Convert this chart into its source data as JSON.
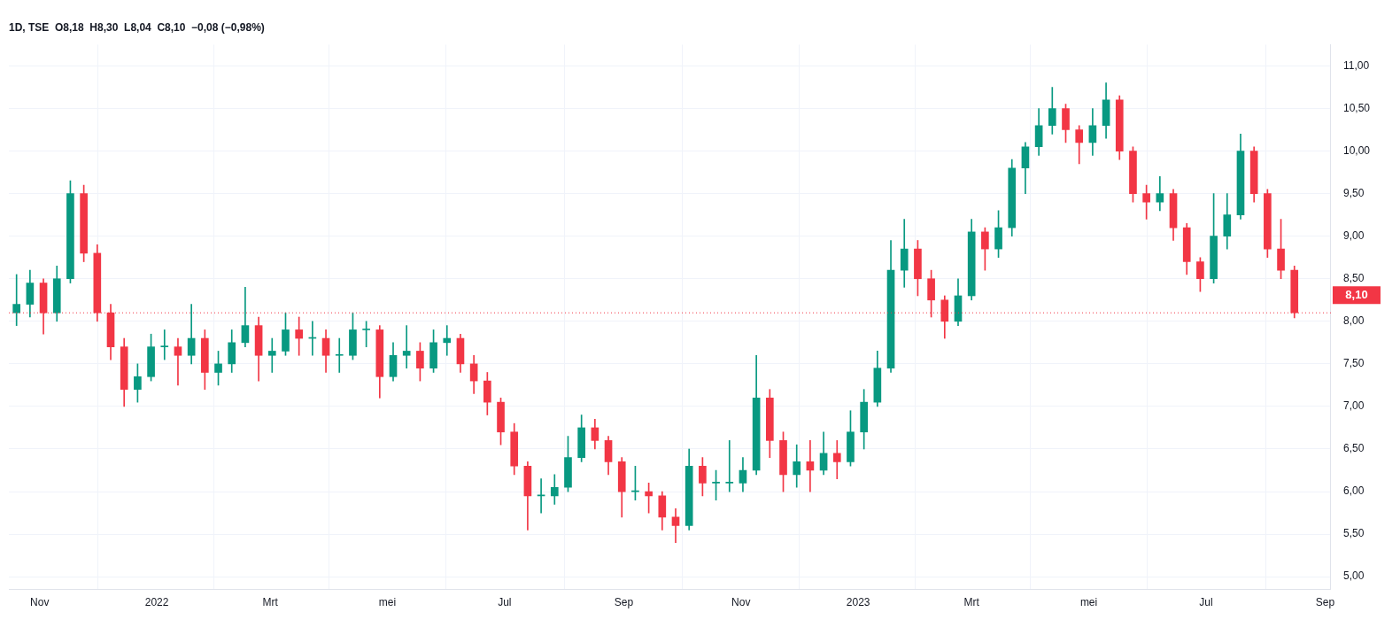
{
  "chart_data": {
    "type": "candlestick",
    "title": "1D, TSE  O8,18  H8,30  L8,04  C8,10  −0,08 (−0,98%)",
    "x": [
      "2021-10-20",
      "2021-10-27",
      "2021-11-03",
      "2021-11-10",
      "2021-11-17",
      "2021-11-24",
      "2021-12-01",
      "2021-12-08",
      "2021-12-15",
      "2021-12-22",
      "2021-12-29",
      "2022-01-05",
      "2022-01-12",
      "2022-01-19",
      "2022-01-26",
      "2022-02-02",
      "2022-02-09",
      "2022-02-16",
      "2022-02-23",
      "2022-03-02",
      "2022-03-09",
      "2022-03-16",
      "2022-03-23",
      "2022-03-30",
      "2022-04-06",
      "2022-04-13",
      "2022-04-20",
      "2022-04-27",
      "2022-05-04",
      "2022-05-11",
      "2022-05-18",
      "2022-05-25",
      "2022-06-01",
      "2022-06-08",
      "2022-06-15",
      "2022-06-22",
      "2022-06-29",
      "2022-07-06",
      "2022-07-13",
      "2022-07-20",
      "2022-07-27",
      "2022-08-03",
      "2022-08-10",
      "2022-08-17",
      "2022-08-24",
      "2022-08-31",
      "2022-09-07",
      "2022-09-14",
      "2022-09-21",
      "2022-09-28",
      "2022-10-05",
      "2022-10-12",
      "2022-10-19",
      "2022-10-26",
      "2022-11-02",
      "2022-11-09",
      "2022-11-16",
      "2022-11-23",
      "2022-11-30",
      "2022-12-07",
      "2022-12-14",
      "2022-12-21",
      "2022-12-28",
      "2023-01-04",
      "2023-01-11",
      "2023-01-18",
      "2023-01-25",
      "2023-02-01",
      "2023-02-08",
      "2023-02-15",
      "2023-02-22",
      "2023-03-01",
      "2023-03-08",
      "2023-03-15",
      "2023-03-22",
      "2023-03-29",
      "2023-04-05",
      "2023-04-12",
      "2023-04-19",
      "2023-04-26",
      "2023-05-03",
      "2023-05-10",
      "2023-05-17",
      "2023-05-24",
      "2023-05-31",
      "2023-06-07",
      "2023-06-14",
      "2023-06-21",
      "2023-06-28",
      "2023-07-05",
      "2023-07-12",
      "2023-07-19",
      "2023-07-26",
      "2023-08-02",
      "2023-08-09",
      "2023-08-16"
    ],
    "ohlc": [
      [
        8.1,
        8.55,
        7.95,
        8.2
      ],
      [
        8.2,
        8.6,
        8.05,
        8.45
      ],
      [
        8.45,
        8.5,
        7.85,
        8.1
      ],
      [
        8.1,
        8.65,
        8.0,
        8.5
      ],
      [
        8.5,
        9.65,
        8.45,
        9.5
      ],
      [
        9.5,
        9.6,
        8.7,
        8.8
      ],
      [
        8.8,
        8.9,
        8.0,
        8.1
      ],
      [
        8.1,
        8.2,
        7.55,
        7.7
      ],
      [
        7.7,
        7.8,
        7.0,
        7.2
      ],
      [
        7.2,
        7.5,
        7.05,
        7.35
      ],
      [
        7.35,
        7.85,
        7.3,
        7.7
      ],
      [
        7.7,
        7.9,
        7.55,
        7.7
      ],
      [
        7.7,
        7.8,
        7.25,
        7.6
      ],
      [
        7.6,
        8.2,
        7.5,
        7.8
      ],
      [
        7.8,
        7.9,
        7.2,
        7.4
      ],
      [
        7.4,
        7.65,
        7.25,
        7.5
      ],
      [
        7.5,
        7.9,
        7.4,
        7.75
      ],
      [
        7.75,
        8.4,
        7.7,
        7.95
      ],
      [
        7.95,
        8.05,
        7.3,
        7.6
      ],
      [
        7.6,
        7.8,
        7.4,
        7.65
      ],
      [
        7.65,
        8.1,
        7.6,
        7.9
      ],
      [
        7.9,
        8.05,
        7.6,
        7.8
      ],
      [
        7.8,
        8.0,
        7.6,
        7.8
      ],
      [
        7.8,
        7.9,
        7.4,
        7.6
      ],
      [
        7.6,
        7.8,
        7.4,
        7.6
      ],
      [
        7.6,
        8.1,
        7.55,
        7.9
      ],
      [
        7.9,
        8.0,
        7.7,
        7.9
      ],
      [
        7.9,
        7.95,
        7.1,
        7.35
      ],
      [
        7.35,
        7.75,
        7.3,
        7.6
      ],
      [
        7.6,
        7.95,
        7.45,
        7.65
      ],
      [
        7.65,
        7.75,
        7.3,
        7.45
      ],
      [
        7.45,
        7.9,
        7.4,
        7.75
      ],
      [
        7.75,
        7.95,
        7.6,
        7.8
      ],
      [
        7.8,
        7.85,
        7.4,
        7.5
      ],
      [
        7.5,
        7.6,
        7.15,
        7.3
      ],
      [
        7.3,
        7.4,
        6.9,
        7.05
      ],
      [
        7.05,
        7.1,
        6.55,
        6.7
      ],
      [
        6.7,
        6.8,
        6.2,
        6.3
      ],
      [
        6.3,
        6.35,
        5.55,
        5.95
      ],
      [
        5.95,
        6.15,
        5.75,
        5.95
      ],
      [
        5.95,
        6.2,
        5.85,
        6.05
      ],
      [
        6.05,
        6.65,
        6.0,
        6.4
      ],
      [
        6.4,
        6.9,
        6.35,
        6.75
      ],
      [
        6.75,
        6.85,
        6.5,
        6.6
      ],
      [
        6.6,
        6.65,
        6.2,
        6.35
      ],
      [
        6.35,
        6.4,
        5.7,
        6.0
      ],
      [
        6.0,
        6.3,
        5.9,
        6.0
      ],
      [
        6.0,
        6.1,
        5.75,
        5.95
      ],
      [
        5.95,
        6.0,
        5.55,
        5.7
      ],
      [
        5.7,
        5.8,
        5.4,
        5.6
      ],
      [
        5.6,
        6.5,
        5.55,
        6.3
      ],
      [
        6.3,
        6.4,
        5.95,
        6.1
      ],
      [
        6.1,
        6.25,
        5.9,
        6.1
      ],
      [
        6.1,
        6.6,
        6.0,
        6.1
      ],
      [
        6.1,
        6.4,
        6.0,
        6.25
      ],
      [
        6.25,
        7.6,
        6.2,
        7.1
      ],
      [
        7.1,
        7.2,
        6.4,
        6.6
      ],
      [
        6.6,
        6.7,
        6.0,
        6.2
      ],
      [
        6.2,
        6.55,
        6.05,
        6.35
      ],
      [
        6.35,
        6.6,
        6.0,
        6.25
      ],
      [
        6.25,
        6.7,
        6.2,
        6.45
      ],
      [
        6.45,
        6.6,
        6.15,
        6.35
      ],
      [
        6.35,
        6.95,
        6.3,
        6.7
      ],
      [
        6.7,
        7.2,
        6.5,
        7.05
      ],
      [
        7.05,
        7.65,
        7.0,
        7.45
      ],
      [
        7.45,
        8.95,
        7.4,
        8.6
      ],
      [
        8.6,
        9.2,
        8.4,
        8.85
      ],
      [
        8.85,
        8.95,
        8.3,
        8.5
      ],
      [
        8.5,
        8.6,
        8.05,
        8.25
      ],
      [
        8.25,
        8.3,
        7.8,
        8.0
      ],
      [
        8.0,
        8.5,
        7.95,
        8.3
      ],
      [
        8.3,
        9.2,
        8.25,
        9.05
      ],
      [
        9.05,
        9.1,
        8.6,
        8.85
      ],
      [
        8.85,
        9.3,
        8.75,
        9.1
      ],
      [
        9.1,
        9.9,
        9.0,
        9.8
      ],
      [
        9.8,
        10.1,
        9.5,
        10.05
      ],
      [
        10.05,
        10.5,
        9.95,
        10.3
      ],
      [
        10.3,
        10.75,
        10.2,
        10.5
      ],
      [
        10.5,
        10.55,
        10.1,
        10.25
      ],
      [
        10.25,
        10.3,
        9.85,
        10.1
      ],
      [
        10.1,
        10.5,
        9.95,
        10.3
      ],
      [
        10.3,
        10.8,
        10.15,
        10.6
      ],
      [
        10.6,
        10.65,
        9.9,
        10.0
      ],
      [
        10.0,
        10.05,
        9.4,
        9.5
      ],
      [
        9.5,
        9.6,
        9.2,
        9.4
      ],
      [
        9.4,
        9.7,
        9.3,
        9.5
      ],
      [
        9.5,
        9.55,
        8.95,
        9.1
      ],
      [
        9.1,
        9.15,
        8.55,
        8.7
      ],
      [
        8.7,
        8.75,
        8.35,
        8.5
      ],
      [
        8.5,
        9.5,
        8.45,
        9.0
      ],
      [
        9.0,
        9.5,
        8.85,
        9.25
      ],
      [
        9.25,
        10.2,
        9.2,
        10.0
      ],
      [
        10.0,
        10.05,
        9.4,
        9.5
      ],
      [
        9.5,
        9.55,
        8.75,
        8.85
      ],
      [
        8.85,
        9.2,
        8.5,
        8.6
      ],
      [
        8.6,
        8.65,
        8.04,
        8.1
      ]
    ],
    "colors": [
      "#089981",
      "#089981",
      "#f23645",
      "#089981",
      "#089981",
      "#f23645",
      "#f23645",
      "#f23645",
      "#f23645",
      "#089981",
      "#089981",
      "#089981",
      "#f23645",
      "#089981",
      "#f23645",
      "#089981",
      "#089981",
      "#089981",
      "#f23645",
      "#089981",
      "#089981",
      "#f23645",
      "#089981",
      "#f23645",
      "#089981",
      "#089981",
      "#089981",
      "#f23645",
      "#089981",
      "#089981",
      "#f23645",
      "#089981",
      "#089981",
      "#f23645",
      "#f23645",
      "#f23645",
      "#f23645",
      "#f23645",
      "#f23645",
      "#089981",
      "#089981",
      "#089981",
      "#089981",
      "#f23645",
      "#f23645",
      "#f23645",
      "#089981",
      "#f23645",
      "#f23645",
      "#f23645",
      "#089981",
      "#f23645",
      "#089981",
      "#089981",
      "#089981",
      "#089981",
      "#f23645",
      "#f23645",
      "#089981",
      "#f23645",
      "#089981",
      "#f23645",
      "#089981",
      "#089981",
      "#089981",
      "#089981",
      "#089981",
      "#f23645",
      "#f23645",
      "#f23645",
      "#089981",
      "#089981",
      "#f23645",
      "#089981",
      "#089981",
      "#089981",
      "#089981",
      "#089981",
      "#f23645",
      "#f23645",
      "#089981",
      "#089981",
      "#f23645",
      "#f23645",
      "#f23645",
      "#089981",
      "#f23645",
      "#f23645",
      "#f23645",
      "#089981",
      "#089981",
      "#089981",
      "#f23645",
      "#f23645",
      "#f23645",
      "#f23645"
    ],
    "xlim": [
      "2021-10-16",
      "2023-09-04"
    ],
    "xticks": [
      {
        "value": "2021-11-01",
        "label": "Nov"
      },
      {
        "value": "2022-01-01",
        "label": "2022"
      },
      {
        "value": "2022-03-01",
        "label": "Mrt"
      },
      {
        "value": "2022-05-01",
        "label": "mei"
      },
      {
        "value": "2022-07-01",
        "label": "Jul"
      },
      {
        "value": "2022-09-01",
        "label": "Sep"
      },
      {
        "value": "2022-11-01",
        "label": "Nov"
      },
      {
        "value": "2023-01-01",
        "label": "2023"
      },
      {
        "value": "2023-03-01",
        "label": "Mrt"
      },
      {
        "value": "2023-05-01",
        "label": "mei"
      },
      {
        "value": "2023-07-01",
        "label": "Jul"
      },
      {
        "value": "2023-09-01",
        "label": "Sep"
      }
    ],
    "ylim": [
      4.85,
      11.25
    ],
    "yticks": [
      {
        "value": 5,
        "label": "5,00"
      },
      {
        "value": 5.5,
        "label": "5,50"
      },
      {
        "value": 6,
        "label": "6,00"
      },
      {
        "value": 6.5,
        "label": "6,50"
      },
      {
        "value": 7,
        "label": "7,00"
      },
      {
        "value": 7.5,
        "label": "7,50"
      },
      {
        "value": 8,
        "label": "8,00"
      },
      {
        "value": 8.5,
        "label": "8,50"
      },
      {
        "value": 9,
        "label": "9,00"
      },
      {
        "value": 9.5,
        "label": "9,50"
      },
      {
        "value": 10,
        "label": "10,00"
      },
      {
        "value": 10.5,
        "label": "10,50"
      },
      {
        "value": 11,
        "label": "11,00"
      }
    ],
    "ref_lines": [
      {
        "axis": "y",
        "value": 8.1,
        "label": "8,10",
        "color": "#f23645",
        "line_style": "dotted"
      }
    ],
    "grid": true,
    "legend": false
  }
}
